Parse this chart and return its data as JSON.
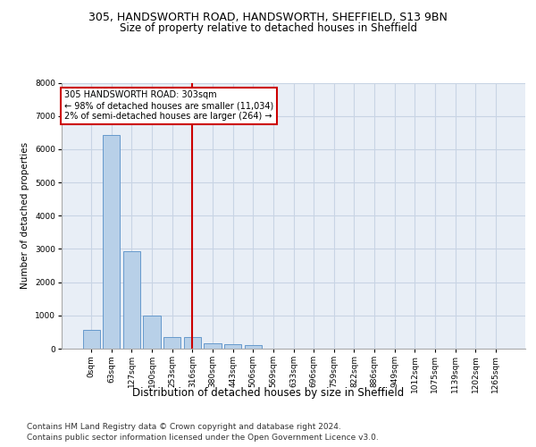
{
  "title_line1": "305, HANDSWORTH ROAD, HANDSWORTH, SHEFFIELD, S13 9BN",
  "title_line2": "Size of property relative to detached houses in Sheffield",
  "xlabel": "Distribution of detached houses by size in Sheffield",
  "ylabel": "Number of detached properties",
  "bar_labels": [
    "0sqm",
    "63sqm",
    "127sqm",
    "190sqm",
    "253sqm",
    "316sqm",
    "380sqm",
    "443sqm",
    "506sqm",
    "569sqm",
    "633sqm",
    "696sqm",
    "759sqm",
    "822sqm",
    "886sqm",
    "949sqm",
    "1012sqm",
    "1075sqm",
    "1139sqm",
    "1202sqm",
    "1265sqm"
  ],
  "bar_values": [
    570,
    6440,
    2920,
    990,
    350,
    350,
    170,
    145,
    95,
    0,
    0,
    0,
    0,
    0,
    0,
    0,
    0,
    0,
    0,
    0,
    0
  ],
  "bar_color": "#b8d0e8",
  "bar_edge_color": "#6699cc",
  "vline_x": 5.0,
  "vline_color": "#cc0000",
  "annotation_text": "305 HANDSWORTH ROAD: 303sqm\n← 98% of detached houses are smaller (11,034)\n2% of semi-detached houses are larger (264) →",
  "annotation_box_color": "#ffffff",
  "annotation_box_edgecolor": "#cc0000",
  "ylim": [
    0,
    8000
  ],
  "yticks": [
    0,
    1000,
    2000,
    3000,
    4000,
    5000,
    6000,
    7000,
    8000
  ],
  "grid_color": "#c8d4e4",
  "background_color": "#e8eef6",
  "footer_line1": "Contains HM Land Registry data © Crown copyright and database right 2024.",
  "footer_line2": "Contains public sector information licensed under the Open Government Licence v3.0.",
  "title_fontsize": 9,
  "subtitle_fontsize": 8.5,
  "tick_fontsize": 6.5,
  "ylabel_fontsize": 7.5,
  "xlabel_fontsize": 8.5,
  "footer_fontsize": 6.5,
  "annot_fontsize": 7
}
